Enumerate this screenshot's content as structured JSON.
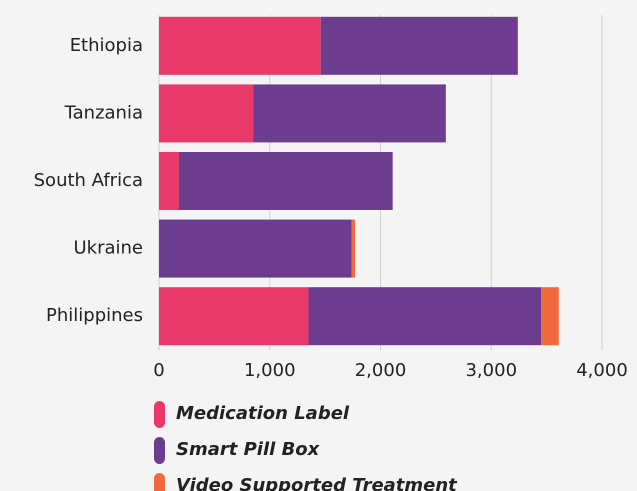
{
  "chart_data": {
    "type": "stacked_barh",
    "categories": [
      "Ethiopia",
      "Tanzania",
      "South Africa",
      "Ukraine",
      "Philippines"
    ],
    "series": [
      {
        "name": "Medication Label",
        "color": "#e8396a",
        "values": [
          1460,
          850,
          180,
          0,
          1350
        ]
      },
      {
        "name": "Smart Pill Box",
        "color": "#6c3d8f",
        "values": [
          1780,
          1740,
          1930,
          1740,
          2100
        ]
      },
      {
        "name": "Video Supported Treatment",
        "color": "#f06a3e",
        "values": [
          0,
          0,
          0,
          30,
          160
        ]
      }
    ],
    "xlim": [
      0,
      4000
    ],
    "xticks": [
      0,
      {
        "value": 1000,
        "label": "1,000"
      },
      {
        "value": 2000,
        "label": "2,000"
      },
      {
        "value": 3000,
        "label": "3,000"
      },
      {
        "value": 4000,
        "label": "4,000"
      }
    ],
    "grid": true
  }
}
